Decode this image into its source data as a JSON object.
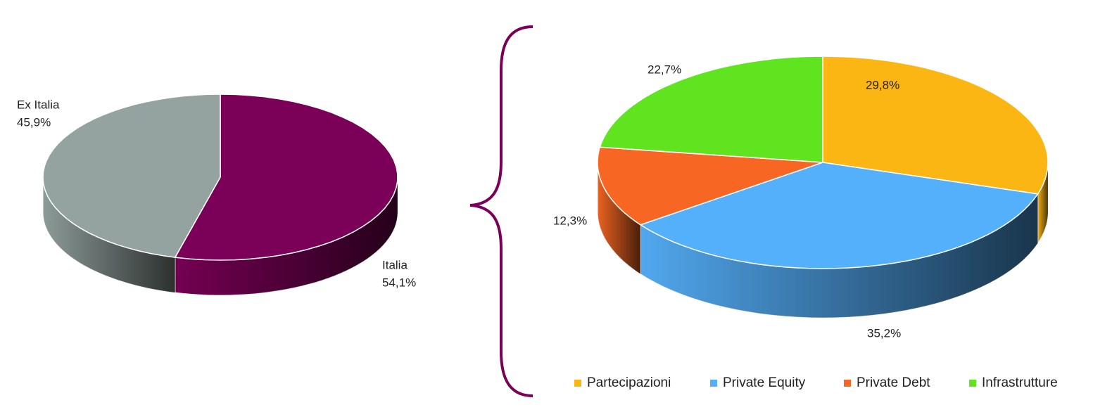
{
  "chart_data": [
    {
      "type": "pie",
      "categories": [
        "Italia",
        "Ex Italia"
      ],
      "values": [
        54.1,
        45.9
      ],
      "value_labels": [
        "54,1%",
        "45,9%"
      ],
      "colors": [
        "#7b0057",
        "#94a3a0"
      ]
    },
    {
      "type": "pie",
      "categories": [
        "Partecipazioni",
        "Private Equity",
        "Private Debt",
        "Infrastrutture"
      ],
      "values": [
        29.8,
        35.2,
        12.3,
        22.7
      ],
      "value_labels": [
        "29,8%",
        "35,2%",
        "12,3%",
        "22,7%"
      ],
      "colors": [
        "#fbb614",
        "#55b0fb",
        "#f76723",
        "#5fe41f"
      ],
      "legend": "bottom"
    }
  ]
}
